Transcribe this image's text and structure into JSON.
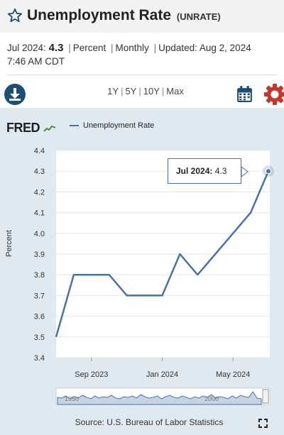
{
  "header": {
    "title": "Unemployment Rate",
    "series_id": "(UNRATE)"
  },
  "meta": {
    "latest_label": "Jul 2024:",
    "latest_value": "4.3",
    "units": "Percent",
    "frequency": "Monthly",
    "updated_label": "Updated:",
    "updated_value": "Aug 2, 2024",
    "updated_time": "7:46 AM CDT"
  },
  "toolbar": {
    "ranges": [
      "1Y",
      "5Y",
      "10Y",
      "Max"
    ]
  },
  "icons": {
    "favorite": "star-icon",
    "download": "download-icon",
    "calendar": "calendar-icon",
    "settings": "gear-icon",
    "expand": "expand-icon"
  },
  "colors": {
    "series": "#4572a7",
    "download_button": "#1d4e73",
    "settings_button": "#c0392b",
    "chart_background": "#e1e9f0"
  },
  "chart": {
    "logo": "FRED",
    "legend": "Unemployment Rate",
    "tooltip_date": "Jul 2024:",
    "tooltip_value": "4.3",
    "source": "Source: U.S. Bureau of Labor Statistics"
  },
  "chart_data": {
    "type": "line",
    "title": "Unemployment Rate",
    "ylabel": "Percent",
    "xlabel": "",
    "ylim": [
      3.4,
      4.4
    ],
    "yticks": [
      3.4,
      3.5,
      3.6,
      3.7,
      3.8,
      3.9,
      4.0,
      4.1,
      4.2,
      4.3,
      4.4
    ],
    "ytick_labels": [
      "3.4",
      "3.5",
      "3.6",
      "3.7",
      "3.8",
      "3.9",
      "4.0",
      "4.1",
      "4.2",
      "4.3",
      "4.4"
    ],
    "xticks": [
      "Sep 2023",
      "Jan 2024",
      "May 2024"
    ],
    "grid": true,
    "legend_position": "top",
    "series": [
      {
        "name": "Unemployment Rate",
        "x": [
          "2023-07",
          "2023-08",
          "2023-09",
          "2023-10",
          "2023-11",
          "2023-12",
          "2024-01",
          "2024-02",
          "2024-03",
          "2024-04",
          "2024-05",
          "2024-06",
          "2024-07"
        ],
        "values": [
          3.5,
          3.8,
          3.8,
          3.8,
          3.7,
          3.7,
          3.7,
          3.9,
          3.8,
          3.9,
          4.0,
          4.1,
          4.3
        ]
      }
    ],
    "navigator_labels": [
      "1950",
      "2000"
    ]
  }
}
